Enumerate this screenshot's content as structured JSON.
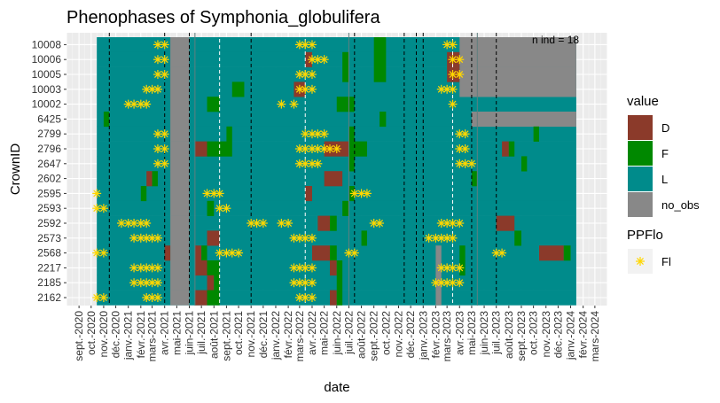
{
  "chart_data": {
    "type": "heatmap",
    "title": "Phenophases of Symphonia_globulifera",
    "xlabel": "date",
    "ylabel": "CrownID",
    "annotation": "n ind =  18",
    "x_range": [
      "2020-08-01",
      "2024-04-01"
    ],
    "x_tick_labels": [
      "sept.-2020",
      "oct.-2020",
      "nov.-2020",
      "déc.-2020",
      "janv.-2021",
      "févr.-2021",
      "mars-2021",
      "avr.-2021",
      "mai-2021",
      "juin-2021",
      "juil.-2021",
      "août-2021",
      "sept.-2021",
      "oct.-2021",
      "nov.-2021",
      "déc.-2021",
      "janv.-2022",
      "févr.-2022",
      "mars-2022",
      "avr.-2022",
      "mai-2022",
      "juin-2022",
      "juil.-2022",
      "août-2022",
      "sept.-2022",
      "oct.-2022",
      "nov.-2022",
      "déc.-2022",
      "janv.-2023",
      "févr.-2023",
      "mars-2023",
      "avr.-2023",
      "mai-2023",
      "juin-2023",
      "juil.-2023",
      "août-2023",
      "sept.-2023",
      "oct.-2023",
      "nov.-2023",
      "déc.-2023",
      "janv.-2024",
      "févr.-2024",
      "mars-2024"
    ],
    "crown_ids": [
      "10008",
      "10006",
      "10005",
      "10003",
      "10002",
      "6425",
      "2799",
      "2796",
      "2647",
      "2602",
      "2595",
      "2593",
      "2592",
      "2573",
      "2568",
      "2217",
      "2185",
      "2162"
    ],
    "legend": {
      "value": {
        "title": "value",
        "items": [
          {
            "key": "D",
            "label": "D",
            "color": "#8B3A2A"
          },
          {
            "key": "F",
            "label": "F",
            "color": "#008800"
          },
          {
            "key": "L",
            "label": "L",
            "color": "#008B8B"
          },
          {
            "key": "no_obs",
            "label": "no_obs",
            "color": "#888888"
          }
        ]
      },
      "ppflo": {
        "title": "PPFlo",
        "items": [
          {
            "key": "Fl",
            "label": "Fl",
            "color": "#FFD700",
            "symbol": "asterisk"
          }
        ]
      }
    },
    "default_value": "L",
    "data_start": "2020-10-15",
    "data_end": "2024-01-15",
    "solid_vlines": [
      "2021-06-15",
      "2022-07-01",
      "2023-05-15"
    ],
    "dashed_vlines_black": [
      "2020-11-15",
      "2021-04-01",
      "2021-06-01",
      "2021-11-01",
      "2022-07-15",
      "2022-11-15",
      "2022-12-15",
      "2023-01-01",
      "2023-05-01",
      "2023-07-01"
    ],
    "dashed_vlines_white": [
      "2021-08-15",
      "2022-03-15",
      "2023-03-15"
    ],
    "blocks": [
      {
        "rows": "all",
        "from": "2021-04-15",
        "to": "2021-06-01",
        "value": "no_obs"
      },
      {
        "rows": [
          "10008",
          "10006",
          "10005",
          "10003"
        ],
        "from": "2023-04-01",
        "to": "2024-01-15",
        "value": "no_obs"
      },
      {
        "rows": [
          "6425"
        ],
        "from": "2023-05-01",
        "to": "2024-01-15",
        "value": "no_obs"
      },
      {
        "rows": [
          "2568"
        ],
        "from": "2023-02-01",
        "to": "2023-02-15",
        "value": "no_obs"
      },
      {
        "rows": [
          "2217"
        ],
        "from": "2023-02-01",
        "to": "2023-02-15",
        "value": "no_obs"
      },
      {
        "rows": [
          "2185"
        ],
        "from": "2023-02-01",
        "to": "2023-02-15",
        "value": "no_obs"
      },
      {
        "rows": [
          "2162"
        ],
        "from": "2023-02-01",
        "to": "2023-02-15",
        "value": "no_obs"
      },
      {
        "rows": [
          "10008",
          "10006",
          "10005"
        ],
        "from": "2022-09-01",
        "to": "2022-10-01",
        "value": "F"
      },
      {
        "rows": [
          "10006",
          "10005"
        ],
        "from": "2023-03-01",
        "to": "2023-04-01",
        "value": "D"
      },
      {
        "rows": [
          "10006"
        ],
        "from": "2022-03-15",
        "to": "2022-04-01",
        "value": "D"
      },
      {
        "rows": [
          "10006",
          "10005"
        ],
        "from": "2022-06-15",
        "to": "2022-07-01",
        "value": "F"
      },
      {
        "rows": [
          "10003"
        ],
        "from": "2021-09-15",
        "to": "2021-10-15",
        "value": "F"
      },
      {
        "rows": [
          "10003"
        ],
        "from": "2022-02-15",
        "to": "2022-03-15",
        "value": "D"
      },
      {
        "rows": [
          "10002"
        ],
        "from": "2021-07-15",
        "to": "2021-08-15",
        "value": "F"
      },
      {
        "rows": [
          "10002"
        ],
        "from": "2022-06-01",
        "to": "2022-07-15",
        "value": "F"
      },
      {
        "rows": [
          "6425"
        ],
        "from": "2020-11-01",
        "to": "2020-11-15",
        "value": "F"
      },
      {
        "rows": [
          "6425"
        ],
        "from": "2022-09-15",
        "to": "2022-10-01",
        "value": "F"
      },
      {
        "rows": [
          "2799"
        ],
        "from": "2021-09-01",
        "to": "2021-09-15",
        "value": "F"
      },
      {
        "rows": [
          "2799"
        ],
        "from": "2022-07-01",
        "to": "2022-07-15",
        "value": "F"
      },
      {
        "rows": [
          "2799"
        ],
        "from": "2023-10-01",
        "to": "2023-10-15",
        "value": "F"
      },
      {
        "rows": [
          "2796"
        ],
        "from": "2021-06-15",
        "to": "2021-07-15",
        "value": "D"
      },
      {
        "rows": [
          "2796"
        ],
        "from": "2021-07-15",
        "to": "2021-09-15",
        "value": "F"
      },
      {
        "rows": [
          "2796"
        ],
        "from": "2022-05-01",
        "to": "2022-07-01",
        "value": "D"
      },
      {
        "rows": [
          "2796"
        ],
        "from": "2022-07-01",
        "to": "2022-08-15",
        "value": "F"
      },
      {
        "rows": [
          "2796"
        ],
        "from": "2023-07-15",
        "to": "2023-08-01",
        "value": "D"
      },
      {
        "rows": [
          "2796"
        ],
        "from": "2023-08-01",
        "to": "2023-08-15",
        "value": "F"
      },
      {
        "rows": [
          "2647"
        ],
        "from": "2022-07-01",
        "to": "2022-07-15",
        "value": "F"
      },
      {
        "rows": [
          "2647"
        ],
        "from": "2023-09-01",
        "to": "2023-09-15",
        "value": "F"
      },
      {
        "rows": [
          "2602"
        ],
        "from": "2021-02-15",
        "to": "2021-03-01",
        "value": "D"
      },
      {
        "rows": [
          "2602"
        ],
        "from": "2021-03-01",
        "to": "2021-03-15",
        "value": "F"
      },
      {
        "rows": [
          "2602"
        ],
        "from": "2022-05-01",
        "to": "2022-06-15",
        "value": "D"
      },
      {
        "rows": [
          "2602"
        ],
        "from": "2023-05-01",
        "to": "2023-05-15",
        "value": "F"
      },
      {
        "rows": [
          "2595"
        ],
        "from": "2021-02-01",
        "to": "2021-02-15",
        "value": "F"
      },
      {
        "rows": [
          "2595"
        ],
        "from": "2022-03-15",
        "to": "2022-04-01",
        "value": "D"
      },
      {
        "rows": [
          "2595"
        ],
        "from": "2022-07-01",
        "to": "2022-07-15",
        "value": "F"
      },
      {
        "rows": [
          "2593"
        ],
        "from": "2021-07-15",
        "to": "2021-08-01",
        "value": "F"
      },
      {
        "rows": [
          "2593"
        ],
        "from": "2022-06-15",
        "to": "2022-07-01",
        "value": "F"
      },
      {
        "rows": [
          "2592"
        ],
        "from": "2022-04-15",
        "to": "2022-05-15",
        "value": "D"
      },
      {
        "rows": [
          "2592"
        ],
        "from": "2022-05-15",
        "to": "2022-06-01",
        "value": "F"
      },
      {
        "rows": [
          "2592"
        ],
        "from": "2023-07-01",
        "to": "2023-08-15",
        "value": "D"
      },
      {
        "rows": [
          "2573"
        ],
        "from": "2021-07-15",
        "to": "2021-08-15",
        "value": "D"
      },
      {
        "rows": [
          "2573"
        ],
        "from": "2022-08-01",
        "to": "2022-08-15",
        "value": "F"
      },
      {
        "rows": [
          "2573"
        ],
        "from": "2023-08-15",
        "to": "2023-09-01",
        "value": "F"
      },
      {
        "rows": [
          "2568"
        ],
        "from": "2021-04-01",
        "to": "2021-04-15",
        "value": "D"
      },
      {
        "rows": [
          "2568"
        ],
        "from": "2021-06-15",
        "to": "2021-07-01",
        "value": "D"
      },
      {
        "rows": [
          "2568"
        ],
        "from": "2021-07-01",
        "to": "2021-07-15",
        "value": "F"
      },
      {
        "rows": [
          "2568"
        ],
        "from": "2022-04-01",
        "to": "2022-05-15",
        "value": "D"
      },
      {
        "rows": [
          "2568"
        ],
        "from": "2022-05-15",
        "to": "2022-06-01",
        "value": "F"
      },
      {
        "rows": [
          "2568"
        ],
        "from": "2023-04-01",
        "to": "2023-04-15",
        "value": "F"
      },
      {
        "rows": [
          "2568"
        ],
        "from": "2023-10-15",
        "to": "2023-12-15",
        "value": "D"
      },
      {
        "rows": [
          "2568"
        ],
        "from": "2023-12-15",
        "to": "2024-01-01",
        "value": "F"
      },
      {
        "rows": [
          "2217"
        ],
        "from": "2021-06-15",
        "to": "2021-07-15",
        "value": "D"
      },
      {
        "rows": [
          "2217"
        ],
        "from": "2021-07-15",
        "to": "2021-08-15",
        "value": "F"
      },
      {
        "rows": [
          "2217"
        ],
        "from": "2022-05-15",
        "to": "2022-06-01",
        "value": "D"
      },
      {
        "rows": [
          "2217"
        ],
        "from": "2022-06-01",
        "to": "2022-06-15",
        "value": "F"
      },
      {
        "rows": [
          "2217"
        ],
        "from": "2023-04-01",
        "to": "2023-04-15",
        "value": "F"
      },
      {
        "rows": [
          "2185"
        ],
        "from": "2021-07-15",
        "to": "2021-08-01",
        "value": "D"
      },
      {
        "rows": [
          "2185"
        ],
        "from": "2021-08-01",
        "to": "2021-08-15",
        "value": "F"
      },
      {
        "rows": [
          "2185"
        ],
        "from": "2022-06-01",
        "to": "2022-06-15",
        "value": "F"
      },
      {
        "rows": [
          "2162"
        ],
        "from": "2021-06-15",
        "to": "2021-07-15",
        "value": "D"
      },
      {
        "rows": [
          "2162"
        ],
        "from": "2021-07-15",
        "to": "2021-08-15",
        "value": "F"
      },
      {
        "rows": [
          "2162"
        ],
        "from": "2022-05-15",
        "to": "2022-06-01",
        "value": "D"
      },
      {
        "rows": [
          "2162"
        ],
        "from": "2022-06-01",
        "to": "2022-06-15",
        "value": "F"
      }
    ],
    "flowering": [
      {
        "row": "10008",
        "dates": [
          "2021-03-15",
          "2021-04-01",
          "2022-03-01",
          "2022-03-15",
          "2022-04-01",
          "2023-03-01",
          "2023-03-15"
        ]
      },
      {
        "row": "10006",
        "dates": [
          "2021-03-15",
          "2021-04-01",
          "2022-04-01",
          "2022-04-15",
          "2022-05-01",
          "2023-03-15",
          "2023-04-01"
        ]
      },
      {
        "row": "10005",
        "dates": [
          "2021-03-15",
          "2021-04-01",
          "2022-03-01",
          "2022-03-15",
          "2022-04-01",
          "2023-03-15",
          "2023-04-01"
        ]
      },
      {
        "row": "10003",
        "dates": [
          "2021-02-15",
          "2021-03-01",
          "2021-03-15",
          "2022-03-01",
          "2022-03-15",
          "2022-04-01",
          "2023-02-15",
          "2023-03-01",
          "2023-03-15"
        ]
      },
      {
        "row": "10002",
        "dates": [
          "2021-01-01",
          "2021-01-15",
          "2021-02-01",
          "2021-02-15",
          "2022-01-15",
          "2022-02-15",
          "2023-03-15"
        ]
      },
      {
        "row": "2799",
        "dates": [
          "2021-03-15",
          "2021-04-01",
          "2022-03-15",
          "2022-04-01",
          "2022-04-15",
          "2022-05-01",
          "2023-04-01",
          "2023-04-15"
        ]
      },
      {
        "row": "2796",
        "dates": [
          "2021-03-15",
          "2021-04-01",
          "2022-03-01",
          "2022-03-15",
          "2022-04-01",
          "2022-04-15",
          "2022-05-01",
          "2022-05-15",
          "2022-06-01",
          "2023-04-01",
          "2023-04-15"
        ]
      },
      {
        "row": "2647",
        "dates": [
          "2021-03-15",
          "2021-04-01",
          "2022-03-01",
          "2022-03-15",
          "2022-04-01",
          "2022-04-15",
          "2023-04-01",
          "2023-04-15",
          "2023-05-01"
        ]
      },
      {
        "row": "2595",
        "dates": [
          "2020-10-15",
          "2021-07-15",
          "2021-08-01",
          "2021-08-15",
          "2022-07-15",
          "2022-08-01",
          "2022-08-15"
        ]
      },
      {
        "row": "2593",
        "dates": [
          "2020-10-15",
          "2020-11-01",
          "2021-08-15",
          "2021-09-01"
        ]
      },
      {
        "row": "2592",
        "dates": [
          "2020-12-15",
          "2021-01-01",
          "2021-01-15",
          "2021-02-01",
          "2021-02-15",
          "2021-11-01",
          "2021-11-15",
          "2021-12-01",
          "2022-01-15",
          "2022-02-01",
          "2022-09-01",
          "2022-09-15",
          "2023-02-15",
          "2023-03-01",
          "2023-03-15",
          "2023-04-01"
        ]
      },
      {
        "row": "2573",
        "dates": [
          "2021-01-15",
          "2021-02-01",
          "2021-02-15",
          "2021-03-01",
          "2021-03-15",
          "2022-02-15",
          "2022-03-01",
          "2022-03-15",
          "2022-04-01",
          "2023-01-15",
          "2023-02-01",
          "2023-02-15",
          "2023-03-01",
          "2023-03-15"
        ]
      },
      {
        "row": "2568",
        "dates": [
          "2020-10-15",
          "2020-11-01",
          "2021-08-15",
          "2021-09-01",
          "2021-09-15",
          "2021-10-01",
          "2022-07-01",
          "2022-07-15",
          "2023-07-01",
          "2023-07-15"
        ]
      },
      {
        "row": "2217",
        "dates": [
          "2021-01-15",
          "2021-02-01",
          "2021-02-15",
          "2021-03-01",
          "2021-03-15",
          "2022-02-15",
          "2022-03-01",
          "2022-03-15",
          "2022-04-01",
          "2023-02-15",
          "2023-03-01",
          "2023-03-15",
          "2023-04-01"
        ]
      },
      {
        "row": "2185",
        "dates": [
          "2021-01-15",
          "2021-02-01",
          "2021-02-15",
          "2021-03-01",
          "2021-03-15",
          "2022-02-15",
          "2022-03-01",
          "2022-03-15",
          "2022-04-01",
          "2023-02-01",
          "2023-02-15",
          "2023-03-01",
          "2023-03-15",
          "2023-04-01"
        ]
      },
      {
        "row": "2162",
        "dates": [
          "2020-10-15",
          "2020-11-01",
          "2021-02-15",
          "2021-03-01",
          "2021-03-15",
          "2022-03-01",
          "2022-03-15",
          "2022-04-01"
        ]
      }
    ]
  }
}
